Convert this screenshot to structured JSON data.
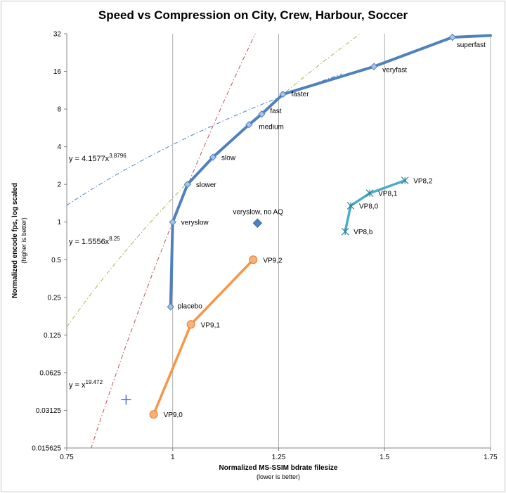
{
  "chart_data": {
    "type": "line",
    "title": "Speed vs Compression on City, Crew, Harbour, Soccer",
    "xlabel": "Normalized MS-SSIM bdrate filesize",
    "xlabel_sub": "(lower is better)",
    "ylabel": "Normalized encode fps, log scaled",
    "ylabel_sub": "(higher is better)",
    "xlim": [
      0.75,
      1.75
    ],
    "ylim": [
      0.015625,
      32
    ],
    "y_scale": "log2",
    "grid": "vertical",
    "x_ticks": [
      "0.75",
      "1",
      "1.25",
      "1.5",
      "1.75"
    ],
    "x_tick_values": [
      0.75,
      1,
      1.25,
      1.5,
      1.75
    ],
    "y_ticks": [
      "0.015625",
      "0.03125",
      "0.0625",
      "0.125",
      "0.25",
      "0.5",
      "1",
      "2",
      "4",
      "8",
      "16",
      "32"
    ],
    "y_tick_values": [
      0.015625,
      0.03125,
      0.0625,
      0.125,
      0.25,
      0.5,
      1,
      2,
      4,
      8,
      16,
      32
    ],
    "series": [
      {
        "color": "#4f81bd",
        "marker": "diamond",
        "points": [
          {
            "x": 0.995,
            "y": 0.21,
            "label": "placebo"
          },
          {
            "x": 1.0,
            "y": 1.0,
            "label": "veryslow"
          },
          {
            "x": 1.035,
            "y": 2.0,
            "label": "slower"
          },
          {
            "x": 1.095,
            "y": 3.3,
            "label": "slow"
          },
          {
            "x": 1.18,
            "y": 6.0,
            "label": "medium"
          },
          {
            "x": 1.21,
            "y": 7.3,
            "label": "fast"
          },
          {
            "x": 1.26,
            "y": 10.5,
            "label": "faster"
          },
          {
            "x": 1.475,
            "y": 17.5,
            "label": "veryfast"
          },
          {
            "x": 1.66,
            "y": 30.0,
            "label": "superfast"
          },
          {
            "x": 1.75,
            "y": 31.0,
            "label": ""
          }
        ]
      },
      {
        "color": "#f79646",
        "marker": "circle",
        "points": [
          {
            "x": 0.955,
            "y": 0.029,
            "label": "VP9,0"
          },
          {
            "x": 1.043,
            "y": 0.152,
            "label": "VP9,1"
          },
          {
            "x": 1.19,
            "y": 0.5,
            "label": "VP9,2"
          }
        ]
      },
      {
        "color": "#4bacc6",
        "marker": "star",
        "points": [
          {
            "x": 1.407,
            "y": 0.84,
            "label": "VP8,b"
          },
          {
            "x": 1.42,
            "y": 1.35,
            "label": "VP8,0"
          },
          {
            "x": 1.465,
            "y": 1.7,
            "label": "VP8,1"
          },
          {
            "x": 1.548,
            "y": 2.15,
            "label": "VP8,2"
          }
        ]
      },
      {
        "color": "#4f81bd",
        "marker": "diamond-large",
        "points": [
          {
            "x": 1.2,
            "y": 0.98,
            "label": "veryslow, no AQ"
          }
        ]
      },
      {
        "color": "#3f5fd0",
        "marker": "cross",
        "points": [
          {
            "x": 0.89,
            "y": 0.038,
            "label": ""
          }
        ]
      }
    ],
    "trendlines": [
      {
        "equation": "y = 4.1577x",
        "exponent": "3.8796",
        "a": 4.1577,
        "b": 3.8796,
        "color": "#4f81bd",
        "dash": "dash-dot",
        "x_range": [
          0.75,
          1.4
        ]
      },
      {
        "equation": "y = 1.5556x",
        "exponent": "8.25",
        "a": 1.5556,
        "b": 8.25,
        "color": "#9bbb59",
        "dash": "dash-dot",
        "x_range": [
          0.75,
          1.45
        ]
      },
      {
        "equation": "y = x",
        "exponent": "19.472",
        "a": 1.0,
        "b": 19.472,
        "color": "#c0504d",
        "dash": "dash-dot",
        "x_range": [
          0.8,
          1.2
        ]
      }
    ]
  }
}
